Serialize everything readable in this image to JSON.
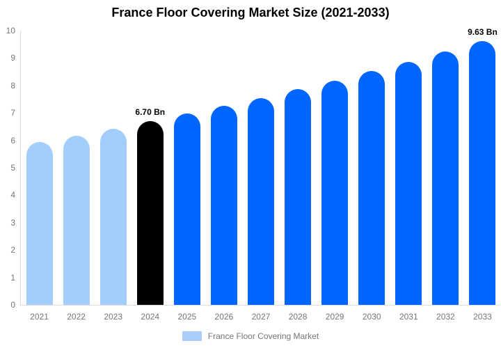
{
  "title": "France Floor Covering Market Size (2021-2033)",
  "legend": {
    "label": "France Floor Covering Market",
    "swatch_color": "#A9CDF8"
  },
  "chart_data": {
    "type": "bar",
    "title": "France Floor Covering Market Size (2021-2033)",
    "categories": [
      "2021",
      "2022",
      "2023",
      "2024",
      "2025",
      "2026",
      "2027",
      "2028",
      "2029",
      "2030",
      "2031",
      "2032",
      "2033"
    ],
    "values": [
      5.94,
      6.18,
      6.43,
      6.7,
      6.97,
      7.26,
      7.55,
      7.86,
      8.18,
      8.52,
      8.87,
      9.24,
      9.63
    ],
    "unit": "Bn",
    "xlabel": "",
    "ylabel": "",
    "ylim": [
      0,
      10
    ],
    "y_ticks": [
      0,
      1,
      2,
      3,
      4,
      5,
      6,
      7,
      8,
      9,
      10
    ],
    "grid": false,
    "legend_position": "bottom",
    "legend_entries": [
      "France Floor Covering Market"
    ],
    "annotations": [
      {
        "category": "2024",
        "label": "6.70 Bn"
      },
      {
        "category": "2033",
        "label": "9.63 Bn"
      }
    ],
    "bar_color_roles": [
      "historical",
      "historical",
      "historical",
      "highlight",
      "forecast",
      "forecast",
      "forecast",
      "forecast",
      "forecast",
      "forecast",
      "forecast",
      "forecast",
      "forecast"
    ],
    "colors": {
      "historical_bar": "#A3CEFB",
      "highlight_bar": "#000000",
      "forecast_bar": "#0066FF",
      "axis_line": "#DDDDDD",
      "tick_label_text": "#757575",
      "annotation_text": "#000000",
      "title_text": "#000000"
    }
  }
}
